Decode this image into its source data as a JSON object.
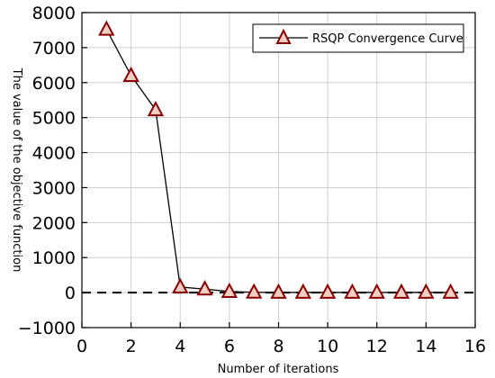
{
  "chart_data": {
    "type": "line",
    "xlabel": "Number of iterations",
    "ylabel": "The value of the objective function",
    "xlim": [
      0,
      16
    ],
    "ylim": [
      -1000,
      8000
    ],
    "xticks": [
      0,
      2,
      4,
      6,
      8,
      10,
      12,
      14,
      16
    ],
    "yticks": [
      -1000,
      0,
      1000,
      2000,
      3000,
      4000,
      5000,
      6000,
      7000,
      8000
    ],
    "grid": true,
    "legend_position": "top-right",
    "reference_line": {
      "y": 0,
      "style": "dashed"
    },
    "series": [
      {
        "name": "RSQP Convergence Curve",
        "marker": "triangle",
        "color": "#000000",
        "marker_stroke": "#8b0000",
        "marker_fill": "#f2cfc4",
        "x": [
          1,
          2,
          3,
          4,
          5,
          6,
          7,
          8,
          9,
          10,
          11,
          12,
          13,
          14,
          15
        ],
        "y": [
          7520,
          6200,
          5220,
          160,
          100,
          30,
          10,
          5,
          5,
          5,
          5,
          5,
          5,
          5,
          5
        ]
      }
    ]
  }
}
